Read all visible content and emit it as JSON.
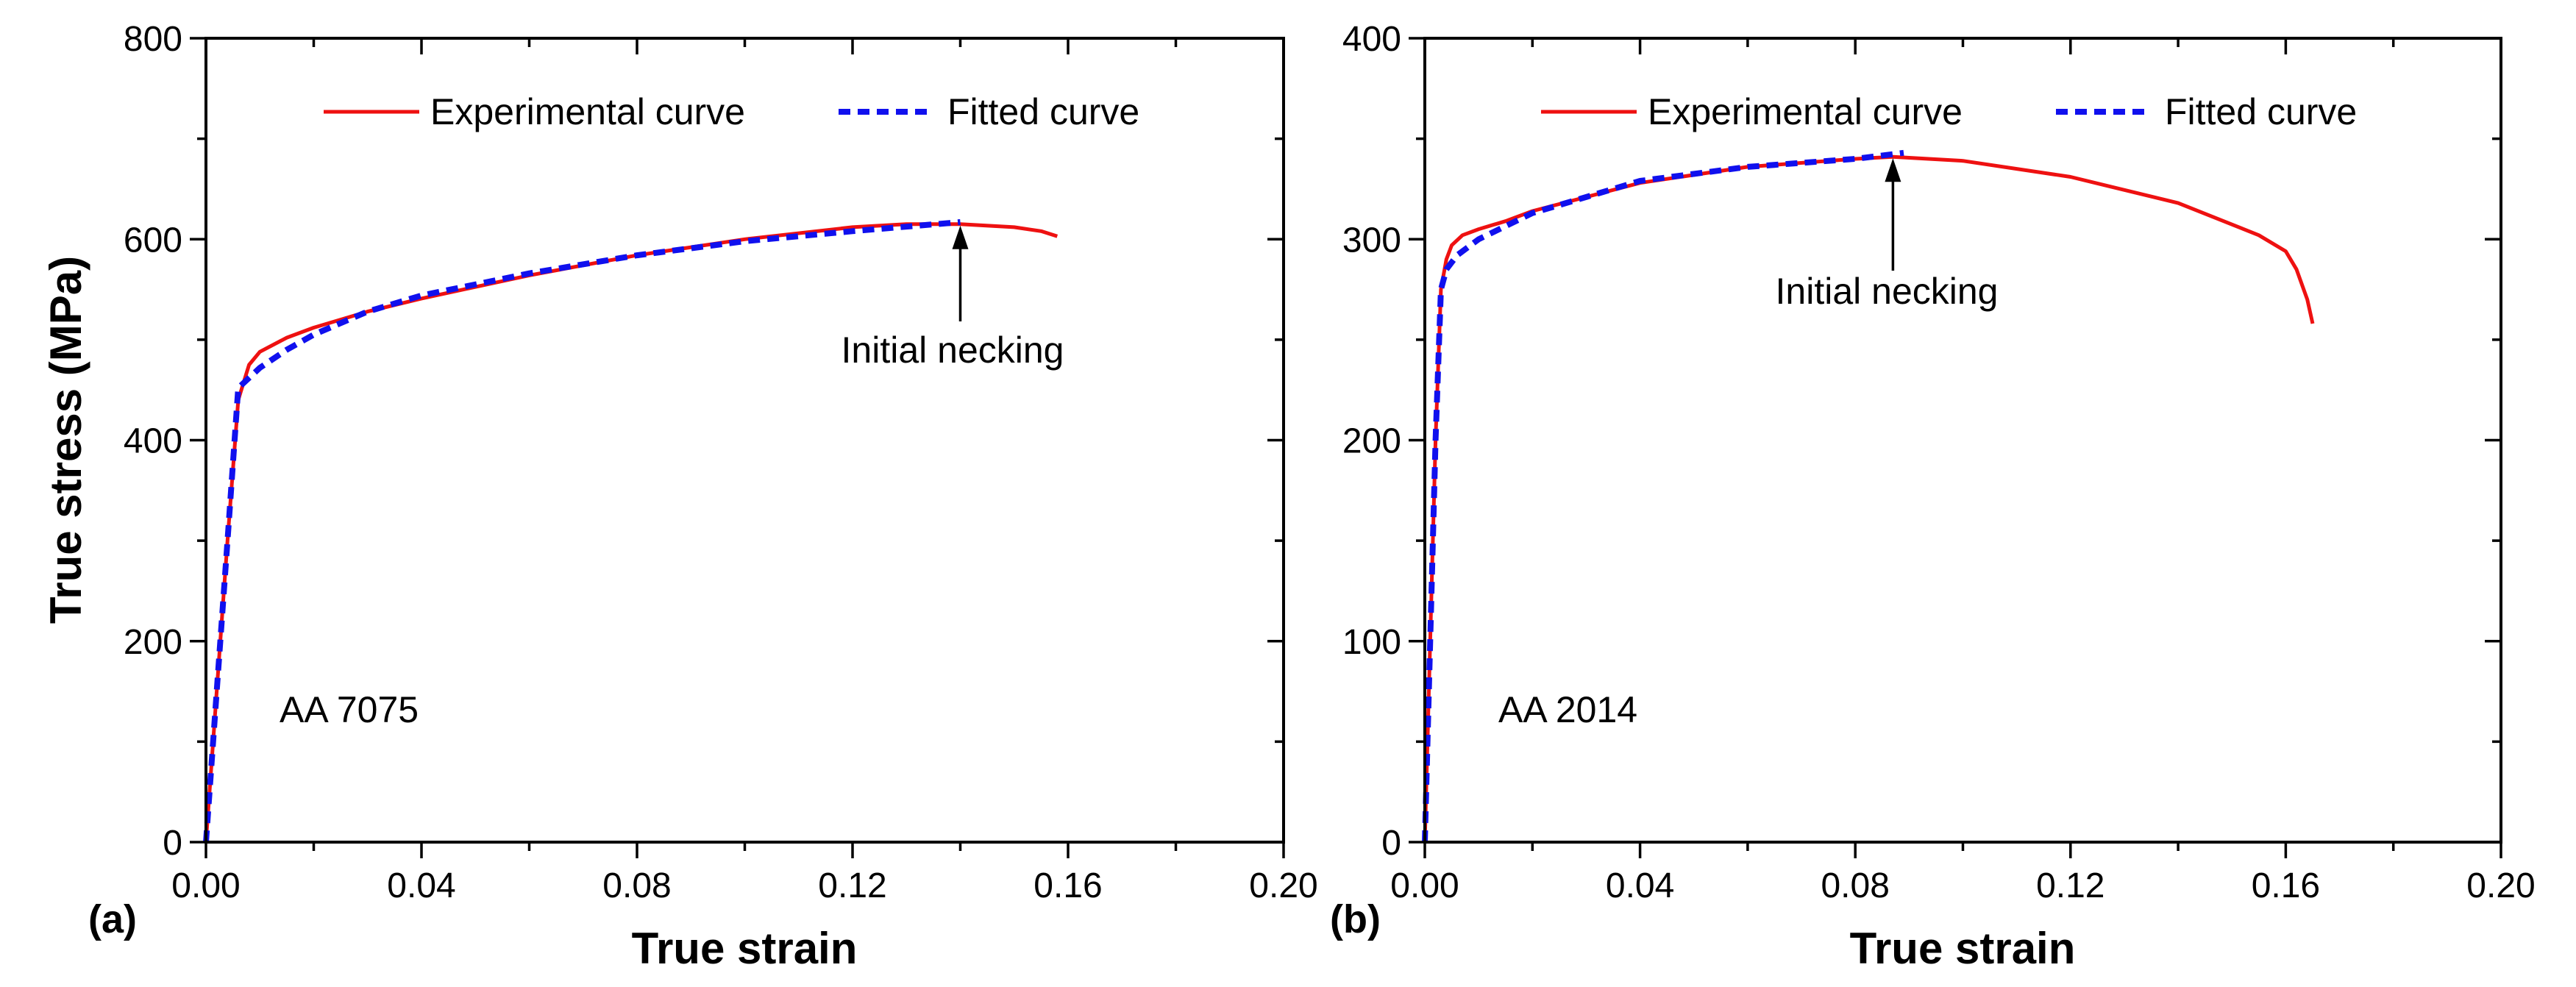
{
  "chart_data": [
    {
      "type": "line",
      "panel_label": "(a)",
      "material_label": "AA 7075",
      "xlabel": "True strain",
      "ylabel": "True stress (MPa)",
      "xlim": [
        0,
        0.2
      ],
      "ylim": [
        0,
        800
      ],
      "xticks": [
        0,
        0.04,
        0.08,
        0.12,
        0.16,
        0.2
      ],
      "xtick_labels": [
        "0.00",
        "0.04",
        "0.08",
        "0.12",
        "0.16",
        "0.20"
      ],
      "yticks": [
        0,
        200,
        400,
        600,
        800
      ],
      "ytick_labels": [
        "0",
        "200",
        "400",
        "600",
        "800"
      ],
      "legend": {
        "position": "top-center",
        "entries": [
          "Experimental curve",
          "Fitted curve"
        ]
      },
      "annotation": {
        "text": "Initial necking",
        "x": 0.14,
        "y": 615
      },
      "series": [
        {
          "name": "Experimental curve",
          "color": "#ee1111",
          "style": "solid",
          "x": [
            0,
            0.002,
            0.004,
            0.006,
            0.008,
            0.01,
            0.015,
            0.02,
            0.03,
            0.04,
            0.06,
            0.08,
            0.1,
            0.12,
            0.13,
            0.14,
            0.15,
            0.155,
            0.158
          ],
          "y": [
            0,
            150,
            300,
            440,
            475,
            488,
            502,
            512,
            528,
            541,
            564,
            584,
            600,
            612,
            615,
            615,
            612,
            608,
            603
          ]
        },
        {
          "name": "Fitted curve",
          "color": "#1010ee",
          "style": "dashed",
          "x": [
            0,
            0.002,
            0.004,
            0.006,
            0.008,
            0.01,
            0.015,
            0.02,
            0.03,
            0.04,
            0.06,
            0.08,
            0.1,
            0.12,
            0.14
          ],
          "y": [
            0,
            150,
            300,
            452,
            462,
            472,
            490,
            505,
            528,
            544,
            566,
            584,
            598,
            608,
            617
          ]
        }
      ]
    },
    {
      "type": "line",
      "panel_label": "(b)",
      "material_label": "AA 2014",
      "xlabel": "True strain",
      "ylabel": "",
      "xlim": [
        0,
        0.2
      ],
      "ylim": [
        0,
        400
      ],
      "xticks": [
        0,
        0.04,
        0.08,
        0.12,
        0.16,
        0.2
      ],
      "xtick_labels": [
        "0.00",
        "0.04",
        "0.08",
        "0.12",
        "0.16",
        "0.20"
      ],
      "yticks": [
        0,
        100,
        200,
        300,
        400
      ],
      "ytick_labels": [
        "0",
        "100",
        "200",
        "300",
        "400"
      ],
      "legend": {
        "position": "top-center",
        "entries": [
          "Experimental curve",
          "Fitted curve"
        ]
      },
      "annotation": {
        "text": "Initial necking",
        "x": 0.087,
        "y": 341
      },
      "series": [
        {
          "name": "Experimental curve",
          "color": "#ee1111",
          "style": "solid",
          "x": [
            0,
            0.001,
            0.002,
            0.003,
            0.004,
            0.005,
            0.007,
            0.01,
            0.015,
            0.02,
            0.04,
            0.06,
            0.08,
            0.087,
            0.1,
            0.12,
            0.14,
            0.155,
            0.16,
            0.162,
            0.164,
            0.165
          ],
          "y": [
            0,
            100,
            200,
            275,
            290,
            297,
            302,
            305,
            309,
            314,
            328,
            336,
            340,
            341,
            339,
            331,
            318,
            302,
            294,
            285,
            270,
            258
          ]
        },
        {
          "name": "Fitted curve",
          "color": "#1010ee",
          "style": "dashed",
          "x": [
            0,
            0.001,
            0.002,
            0.003,
            0.004,
            0.006,
            0.01,
            0.02,
            0.04,
            0.06,
            0.08,
            0.089
          ],
          "y": [
            0,
            100,
            200,
            275,
            285,
            292,
            300,
            313,
            329,
            336,
            340,
            343
          ]
        }
      ]
    }
  ]
}
